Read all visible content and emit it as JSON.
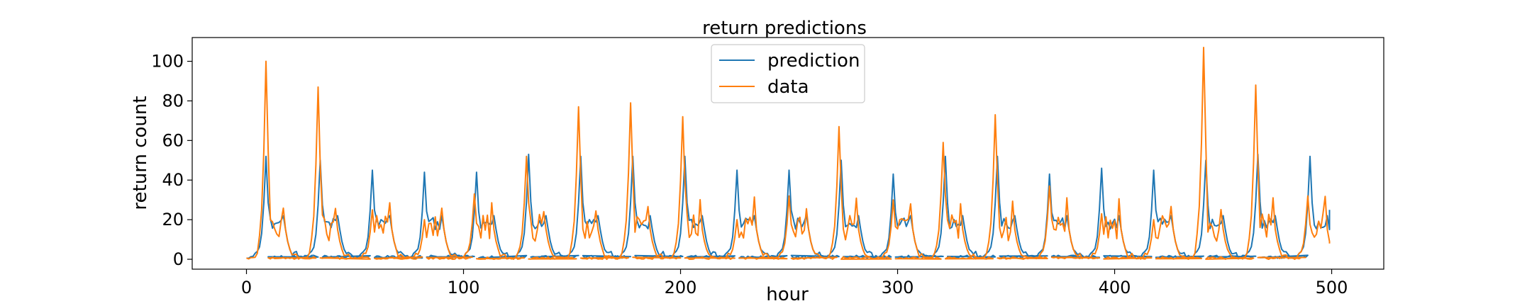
{
  "chart_data": {
    "type": "line",
    "title": "return predictions",
    "xlabel": "hour",
    "ylabel": "return count",
    "xlim": [
      -25,
      524
    ],
    "ylim": [
      -5,
      112
    ],
    "xticks": [
      0,
      100,
      200,
      300,
      400,
      500
    ],
    "yticks": [
      0,
      20,
      40,
      60,
      80,
      100
    ],
    "grid": false,
    "legend": "top-center",
    "series": [
      {
        "name": "prediction",
        "color": "#1f77b4",
        "peaks": [
          {
            "x": 9,
            "y": 52
          },
          {
            "x": 34,
            "y": 50
          },
          {
            "x": 58,
            "y": 45
          },
          {
            "x": 82,
            "y": 44
          },
          {
            "x": 106,
            "y": 44
          },
          {
            "x": 130,
            "y": 53
          },
          {
            "x": 154,
            "y": 52
          },
          {
            "x": 178,
            "y": 52
          },
          {
            "x": 202,
            "y": 52
          },
          {
            "x": 226,
            "y": 45
          },
          {
            "x": 250,
            "y": 45
          },
          {
            "x": 274,
            "y": 50
          },
          {
            "x": 298,
            "y": 43
          },
          {
            "x": 322,
            "y": 52
          },
          {
            "x": 346,
            "y": 52
          },
          {
            "x": 370,
            "y": 43
          },
          {
            "x": 394,
            "y": 46
          },
          {
            "x": 418,
            "y": 45
          },
          {
            "x": 442,
            "y": 50
          },
          {
            "x": 466,
            "y": 53
          },
          {
            "x": 490,
            "y": 52
          }
        ],
        "last": {
          "x": 499,
          "y": 25
        }
      },
      {
        "name": "data",
        "color": "#ff7f0e",
        "peaks": [
          {
            "x": 9,
            "y": 100
          },
          {
            "x": 33,
            "y": 87
          },
          {
            "x": 58,
            "y": 25
          },
          {
            "x": 82,
            "y": 20
          },
          {
            "x": 105,
            "y": 33
          },
          {
            "x": 129,
            "y": 52
          },
          {
            "x": 153,
            "y": 77
          },
          {
            "x": 177,
            "y": 79
          },
          {
            "x": 201,
            "y": 72
          },
          {
            "x": 226,
            "y": 20
          },
          {
            "x": 250,
            "y": 32
          },
          {
            "x": 273,
            "y": 67
          },
          {
            "x": 298,
            "y": 30
          },
          {
            "x": 321,
            "y": 59
          },
          {
            "x": 345,
            "y": 73
          },
          {
            "x": 370,
            "y": 37
          },
          {
            "x": 394,
            "y": 23
          },
          {
            "x": 418,
            "y": 20
          },
          {
            "x": 441,
            "y": 107
          },
          {
            "x": 465,
            "y": 88
          },
          {
            "x": 489,
            "y": 32
          }
        ],
        "last": {
          "x": 499,
          "y": 8
        }
      }
    ]
  }
}
